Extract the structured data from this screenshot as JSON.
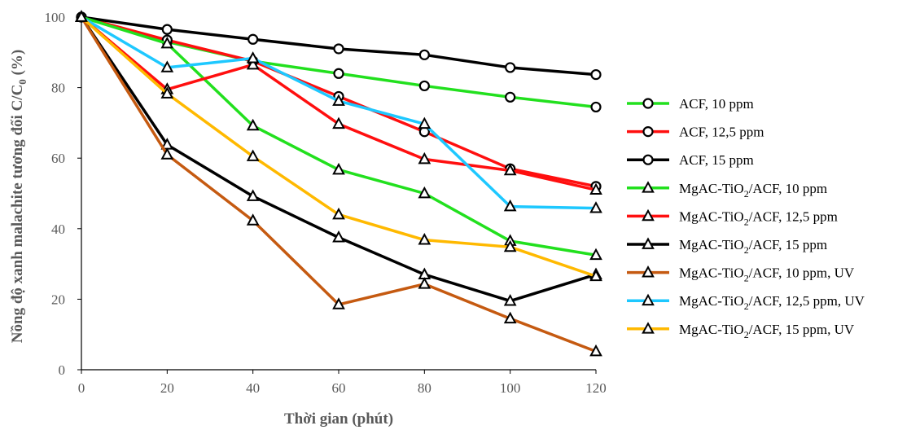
{
  "chart_data": {
    "type": "line",
    "x": [
      0,
      20,
      40,
      60,
      80,
      100,
      120
    ],
    "xlabel": "Thời gian (phút)",
    "ylabel_prefix": "Nồng độ xanh malachite tương đối C/C",
    "ylabel_sub": "0",
    "ylabel_suffix": " (%)",
    "xlim": [
      0,
      120
    ],
    "ylim": [
      0,
      100
    ],
    "xticks": [
      "0",
      "20",
      "40",
      "60",
      "80",
      "100",
      "120"
    ],
    "yticks": [
      "0",
      "20",
      "40",
      "60",
      "80",
      "100"
    ],
    "grid": false,
    "legend_position": "right",
    "series": [
      {
        "name": "ACF, 10 ppm",
        "legend_parts": [
          "ACF, 10 ppm"
        ],
        "color": "#22e01e",
        "marker": "circle",
        "values": [
          100,
          93,
          87.5,
          84,
          80.5,
          77.3,
          74.5
        ]
      },
      {
        "name": "ACF, 12,5 ppm",
        "legend_parts": [
          "ACF, 12,5 ppm"
        ],
        "color": "#ff0f0f",
        "marker": "circle",
        "values": [
          100,
          93.5,
          87.5,
          77.5,
          67.5,
          57,
          52
        ]
      },
      {
        "name": "ACF, 15 ppm",
        "legend_parts": [
          "ACF, 15 ppm"
        ],
        "color": "#000000",
        "marker": "circle",
        "values": [
          100,
          96.5,
          93.7,
          91,
          89.3,
          85.7,
          83.7
        ]
      },
      {
        "name": "MgAC-TiO2/ACF, 10 ppm",
        "legend_parts": [
          "MgAC-TiO",
          "2",
          "/ACF, 10 ppm"
        ],
        "color": "#22e01e",
        "marker": "triangle",
        "values": [
          100,
          92.5,
          69.2,
          56.7,
          50,
          36.5,
          32.5
        ]
      },
      {
        "name": "MgAC-TiO2/ACF, 12,5 ppm",
        "legend_parts": [
          "MgAC-TiO",
          "2",
          "/ACF, 12,5 ppm"
        ],
        "color": "#ff0f0f",
        "marker": "triangle",
        "values": [
          100,
          79.5,
          86.5,
          69.7,
          59.7,
          56.5,
          51
        ]
      },
      {
        "name": "MgAC-TiO2/ACF, 15 ppm",
        "legend_parts": [
          "MgAC-TiO",
          "2",
          "/ACF, 15 ppm"
        ],
        "color": "#000000",
        "marker": "triangle",
        "values": [
          100,
          63.8,
          49.2,
          37.5,
          27,
          19.5,
          27
        ]
      },
      {
        "name": "MgAC-TiO2/ACF, 10 ppm, UV",
        "legend_parts": [
          "MgAC-TiO",
          "2",
          "/ACF, 10 ppm, UV"
        ],
        "color": "#c55a11",
        "marker": "triangle",
        "values": [
          100,
          61,
          42.3,
          18.5,
          24.3,
          14.5,
          5.2
        ]
      },
      {
        "name": "MgAC-TiO2/ACF, 12,5 ppm, UV",
        "legend_parts": [
          "MgAC-TiO",
          "2",
          "/ACF, 12,5 ppm, UV"
        ],
        "color": "#1ec8ff",
        "marker": "triangle",
        "values": [
          100,
          85.7,
          88.3,
          76.2,
          69.7,
          46.3,
          45.8
        ]
      },
      {
        "name": "MgAC-TiO2/ACF, 15 ppm, UV",
        "legend_parts": [
          "MgAC-TiO",
          "2",
          "/ACF, 15 ppm, UV"
        ],
        "color": "#ffb900",
        "marker": "triangle",
        "values": [
          100,
          78.3,
          60.5,
          44,
          36.8,
          34.8,
          26.5
        ]
      }
    ]
  }
}
